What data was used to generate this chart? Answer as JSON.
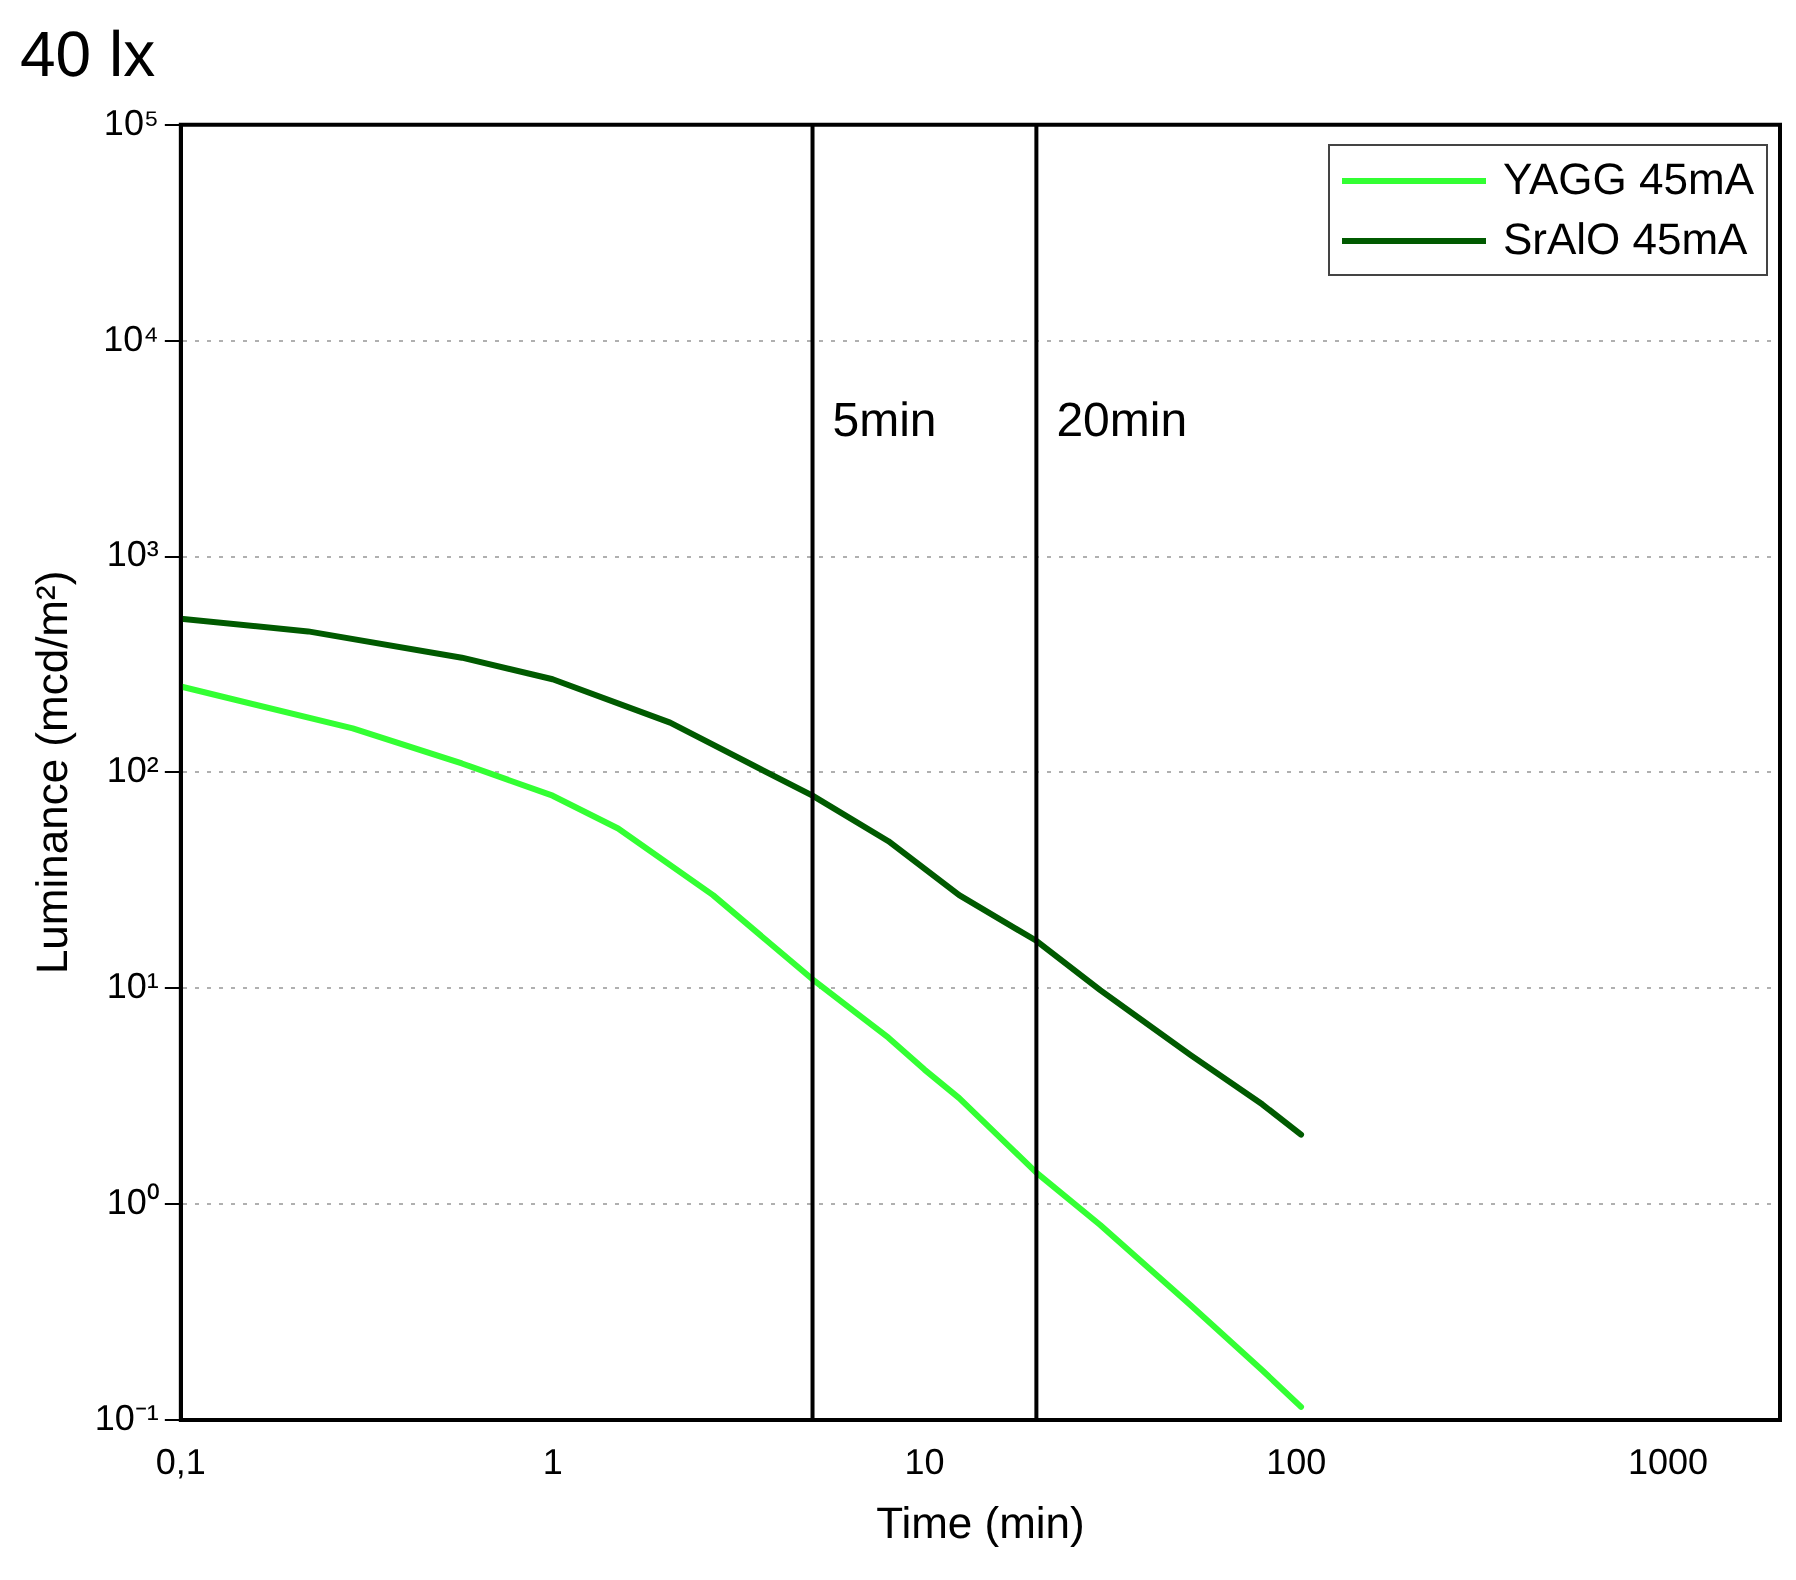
{
  "chart_data": {
    "type": "line",
    "title": "40 lx",
    "xlabel": "Time (min)",
    "ylabel": "Luminance (mcd/m²)",
    "log": "xy",
    "grid": "y",
    "legend": "top right",
    "marker": "none",
    "line_style": "solid",
    "xlim": [
      0.1,
      2000
    ],
    "ylim": [
      0.1,
      100000
    ],
    "xticks": [
      {
        "value": 0.1,
        "label": "0,1"
      },
      1,
      10,
      100,
      1000
    ],
    "yticks": [
      {
        "value": 0.1,
        "label": "10⁻¹"
      },
      {
        "value": 1,
        "label": "10⁰"
      },
      {
        "value": 10,
        "label": "10¹"
      },
      {
        "value": 100,
        "label": "10²"
      },
      {
        "value": 1000,
        "label": "10³"
      },
      {
        "value": 10000,
        "label": "10⁴"
      },
      {
        "value": 100000,
        "label": "10⁵"
      }
    ],
    "ref_lines": [
      {
        "axis": "x",
        "value": 5,
        "label": "5min",
        "color": "#000000"
      },
      {
        "axis": "x",
        "value": 20,
        "label": "20min",
        "color": "#000000"
      }
    ],
    "series": [
      {
        "name": "YAGG 45mA",
        "color": "#33ff33",
        "x": [
          0.1,
          0.29,
          0.57,
          1,
          1.5,
          2.7,
          5,
          8,
          10,
          12.4,
          20,
          29.7,
          52,
          81,
          103
        ],
        "values": [
          250,
          160,
          110,
          78,
          55,
          27,
          11,
          5.9,
          4.2,
          3.1,
          1.4,
          0.8,
          0.34,
          0.17,
          0.115
        ]
      },
      {
        "name": "SrAlO 45mA",
        "color": "#005a00",
        "x": [
          0.1,
          0.22,
          0.57,
          1,
          2.07,
          5,
          8,
          12.4,
          20,
          29.7,
          52,
          81,
          103
        ],
        "values": [
          515,
          450,
          340,
          270,
          170,
          78,
          48,
          27,
          16.6,
          9.8,
          4.9,
          2.9,
          2.1
        ]
      }
    ]
  }
}
